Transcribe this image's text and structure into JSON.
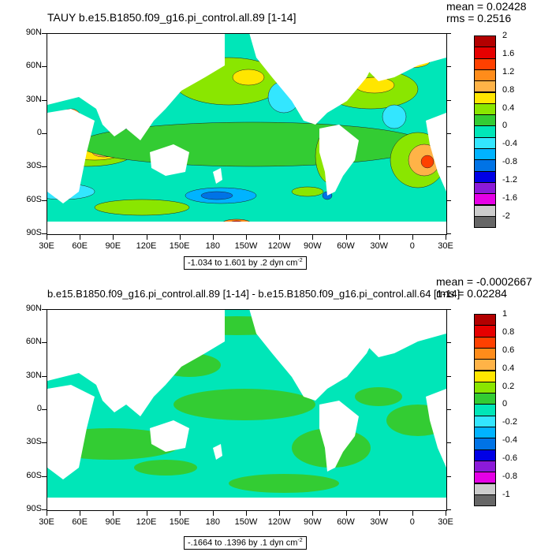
{
  "panels": [
    {
      "title": "TAUY b.e15.B1850.f09_g16.pi_control.all.89 [1-14]",
      "mean": "mean = 0.02428",
      "rms": "rms = 0.2516",
      "range_text": "-1.034 to 1.601 by .2 dyn cm",
      "range_exp": "-2",
      "legend_labels": [
        "2",
        "1.6",
        "1.2",
        "0.8",
        "0.4",
        "0",
        "-0.4",
        "-0.8",
        "-1.2",
        "-1.6",
        "-2"
      ]
    },
    {
      "title": "b.e15.B1850.f09_g16.pi_control.all.89 [1-14] - b.e15.B1850.f09_g16.pi_control.all.64 [1-14]",
      "mean": "mean = -0.0002667",
      "rms": "rms = 0.02284",
      "range_text": "-.1664 to .1396 by .1 dyn cm",
      "range_exp": "-2",
      "legend_labels": [
        "1",
        "0.8",
        "0.6",
        "0.4",
        "0.2",
        "0",
        "-0.2",
        "-0.4",
        "-0.6",
        "-0.8",
        "-1"
      ]
    }
  ],
  "lat_labels": [
    "90N",
    "60N",
    "30N",
    "0",
    "30S",
    "60S",
    "90S"
  ],
  "lon_labels": [
    "30E",
    "60E",
    "90E",
    "120E",
    "150E",
    "180",
    "150W",
    "120W",
    "90W",
    "60W",
    "30W",
    "0",
    "30E"
  ],
  "palette": [
    "#b30000",
    "#e60000",
    "#ff4000",
    "#ff8c1a",
    "#ffb347",
    "#ffe600",
    "#8ae600",
    "#33cc33",
    "#00e6b8",
    "#33e6ff",
    "#00b3ff",
    "#0073e6",
    "#0000e6",
    "#8c1ad9",
    "#e600e6",
    "#cccccc",
    "#666666"
  ],
  "colors": {
    "ocean_base": "#00e6b8",
    "positive": "#33cc33",
    "land": "#ffffff"
  }
}
